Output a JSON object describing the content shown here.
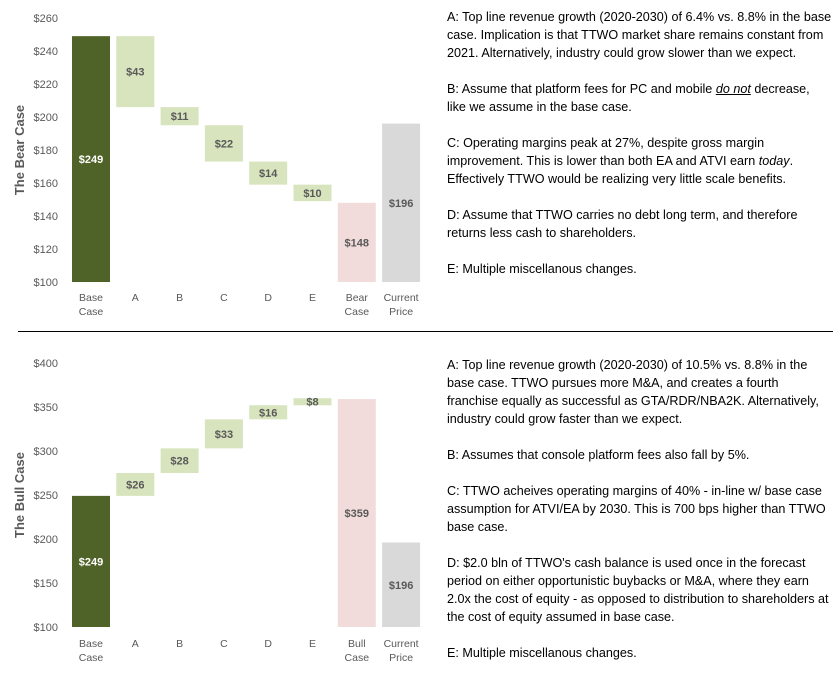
{
  "colors": {
    "base": "#4f6228",
    "step": "#d7e4bd",
    "bear_total": "#f2dcdb",
    "bull_total": "#f2dcdb",
    "current": "#d9d9d9",
    "axis_text": "#595959"
  },
  "chart_data": [
    {
      "type": "bar",
      "subtype": "waterfall",
      "title": "The Bear Case",
      "ylabel": "The Bear Case",
      "ylim": [
        100,
        260
      ],
      "yticks": [
        100,
        120,
        140,
        160,
        180,
        200,
        220,
        240,
        260
      ],
      "ytick_labels": [
        "$100",
        "$120",
        "$140",
        "$160",
        "$180",
        "$200",
        "$220",
        "$240",
        "$260"
      ],
      "categories": [
        [
          "Base",
          "Case"
        ],
        [
          "A"
        ],
        [
          "B"
        ],
        [
          "C"
        ],
        [
          "D"
        ],
        [
          "E"
        ],
        [
          "Bear",
          "Case"
        ],
        [
          "Current",
          "Price"
        ]
      ],
      "bars": [
        {
          "kind": "base",
          "start": 100,
          "end": 249,
          "label": "$249"
        },
        {
          "kind": "step",
          "start": 249,
          "end": 206,
          "label": "$43"
        },
        {
          "kind": "step",
          "start": 206,
          "end": 195,
          "label": "$11"
        },
        {
          "kind": "step",
          "start": 195,
          "end": 173,
          "label": "$22"
        },
        {
          "kind": "step",
          "start": 173,
          "end": 159,
          "label": "$14"
        },
        {
          "kind": "step",
          "start": 159,
          "end": 149,
          "label": "$10"
        },
        {
          "kind": "bear_total",
          "start": 100,
          "end": 148,
          "label": "$148"
        },
        {
          "kind": "current",
          "start": 100,
          "end": 196,
          "label": "$196"
        }
      ]
    },
    {
      "type": "bar",
      "subtype": "waterfall",
      "title": "The Bull Case",
      "ylabel": "The Bull Case",
      "ylim": [
        100,
        400
      ],
      "yticks": [
        100,
        150,
        200,
        250,
        300,
        350,
        400
      ],
      "ytick_labels": [
        "$100",
        "$150",
        "$200",
        "$250",
        "$300",
        "$350",
        "$400"
      ],
      "categories": [
        [
          "Base",
          "Case"
        ],
        [
          "A"
        ],
        [
          "B"
        ],
        [
          "C"
        ],
        [
          "D"
        ],
        [
          "E"
        ],
        [
          "Bull",
          "Case"
        ],
        [
          "Current",
          "Price"
        ]
      ],
      "bars": [
        {
          "kind": "base",
          "start": 100,
          "end": 249,
          "label": "$249"
        },
        {
          "kind": "step",
          "start": 249,
          "end": 275,
          "label": "$26"
        },
        {
          "kind": "step",
          "start": 275,
          "end": 303,
          "label": "$28"
        },
        {
          "kind": "step",
          "start": 303,
          "end": 336,
          "label": "$33"
        },
        {
          "kind": "step",
          "start": 336,
          "end": 352,
          "label": "$16"
        },
        {
          "kind": "step",
          "start": 352,
          "end": 360,
          "label": "$8"
        },
        {
          "kind": "bull_total",
          "start": 100,
          "end": 359,
          "label": "$359"
        },
        {
          "kind": "current",
          "start": 100,
          "end": 196,
          "label": "$196"
        }
      ]
    }
  ],
  "bear_notes": {
    "a_key": "A:",
    "a_text": " Top line revenue growth (2020-2030) of 6.4% vs. 8.8% in the base case. Implication is that TTWO market share remains constant from 2021. Alternatively, industry could grow slower than we expect.",
    "b_key": "B:",
    "b_pre": " Assume that platform fees for PC and mobile ",
    "b_em": "do not",
    "b_post": " decrease, like we assume in the base case.",
    "c_key": "C:",
    "c_pre": " Operating margins peak at 27%, despite gross margin improvement. This is lower than both EA and ATVI earn ",
    "c_em": "today",
    "c_post": ". Effectively TTWO would be realizing very little scale benefits.",
    "d_key": "D:",
    "d_text": " Assume that TTWO carries no debt long term, and therefore returns less cash to shareholders.",
    "e_key": "E:",
    "e_text": " Multiple miscellanous changes."
  },
  "bull_notes": {
    "a_key": "A:",
    "a_text": " Top line revenue growth (2020-2030) of 10.5% vs. 8.8% in the base case. TTWO pursues more M&A, and creates a fourth franchise equally as successful as GTA/RDR/NBA2K. Alternatively, industry could grow faster than we expect.",
    "b_key": "B:",
    "b_text": " Assumes that console platform fees also fall by 5%.",
    "c_key": "C:",
    "c_text": " TTWO acheives operating margins of 40% - in-line w/ base case assumption for ATVI/EA by 2030. This is 700 bps higher than TTWO base case.",
    "d_key": "D:",
    "d_text": " $2.0 bln of TTWO's cash balance is used once in the forecast period on either opportunistic buybacks or M&A, where they earn 2.0x the cost of equity - as opposed to distribution to shareholders at the cost of equity assumed in base case.",
    "e_key": "E:",
    "e_text": " Multiple miscellanous changes."
  }
}
